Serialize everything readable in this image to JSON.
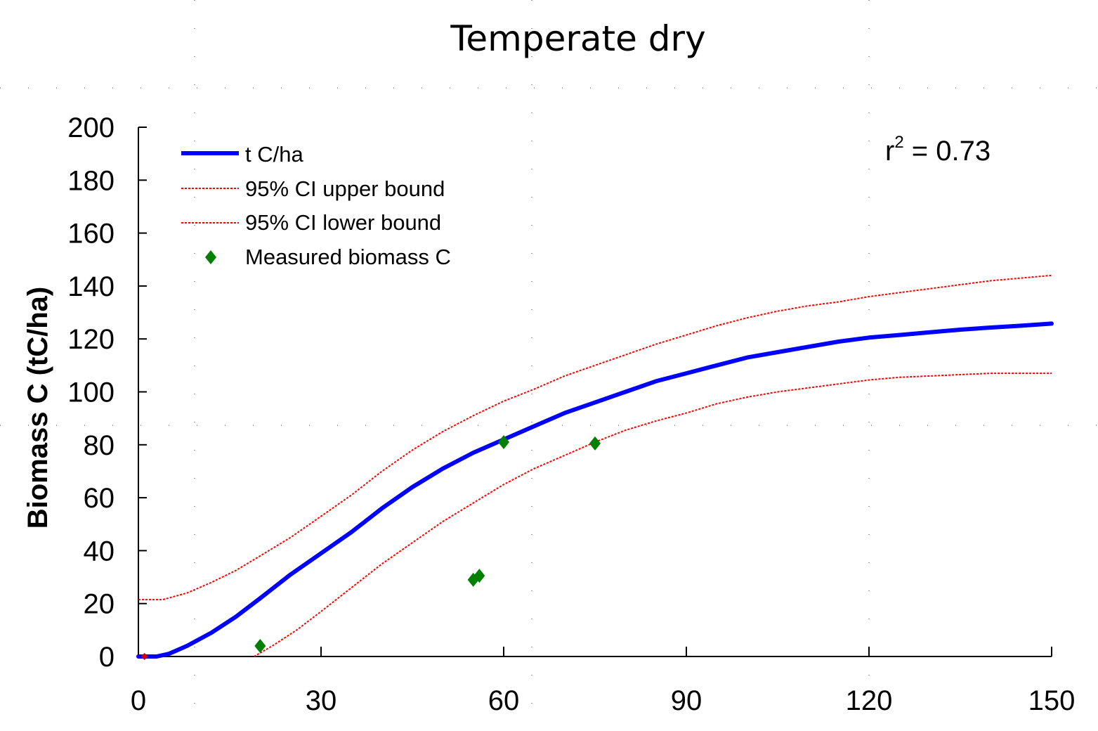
{
  "chart_data": {
    "type": "line",
    "title": "Temperate dry",
    "xlabel": "",
    "ylabel": "Biomass C (tC/ha)",
    "xlim": [
      0,
      150
    ],
    "ylim": [
      0,
      200
    ],
    "x_ticks": [
      0,
      30,
      60,
      90,
      120,
      150
    ],
    "y_ticks": [
      0,
      20,
      40,
      60,
      80,
      100,
      120,
      140,
      160,
      180,
      200
    ],
    "grid": false,
    "legend_position": "top-left",
    "annotation": {
      "base": "r",
      "sup": "2",
      "rest": " = 0.73"
    },
    "colors": {
      "main": "#0000ff",
      "ci": "#ff0000",
      "measured": "#008000",
      "axis": "#000000"
    },
    "series": [
      {
        "name": "t C/ha",
        "style": "solid",
        "x": [
          0,
          3,
          5,
          8,
          12,
          16,
          20,
          25,
          30,
          35,
          40,
          45,
          50,
          55,
          60,
          65,
          70,
          75,
          80,
          85,
          90,
          95,
          100,
          105,
          110,
          115,
          120,
          125,
          130,
          135,
          140,
          145,
          150
        ],
        "y": [
          0,
          0,
          1,
          4,
          9,
          15,
          22,
          31,
          39,
          47,
          56,
          64,
          71,
          77,
          82,
          87,
          92,
          96,
          100,
          104,
          107,
          110,
          113,
          115,
          117,
          119,
          120.5,
          121.5,
          122.5,
          123.5,
          124.3,
          125,
          125.8
        ]
      },
      {
        "name": "95% CI upper bound",
        "style": "dotted",
        "x": [
          0,
          4,
          8,
          12,
          16,
          20,
          25,
          30,
          35,
          40,
          45,
          50,
          55,
          60,
          65,
          70,
          75,
          80,
          85,
          90,
          95,
          100,
          105,
          110,
          115,
          120,
          125,
          130,
          135,
          140,
          145,
          150
        ],
        "y": [
          21.5,
          21.5,
          24,
          28,
          32.5,
          38,
          45,
          53,
          61,
          70,
          78,
          85,
          91,
          96.5,
          101,
          106,
          110,
          114,
          118,
          121.5,
          125,
          128,
          130.5,
          132.5,
          134,
          136,
          137.5,
          139,
          140.5,
          142,
          143,
          144
        ]
      },
      {
        "name": "95% CI lower bound",
        "style": "dotted",
        "x": [
          19,
          22,
          26,
          30,
          35,
          40,
          45,
          50,
          55,
          60,
          65,
          70,
          75,
          80,
          85,
          90,
          95,
          100,
          105,
          110,
          115,
          120,
          125,
          130,
          135,
          140,
          145,
          150
        ],
        "y": [
          0,
          4,
          10,
          17,
          26,
          35,
          43,
          51,
          58,
          65,
          71,
          76,
          81,
          85.5,
          89,
          92,
          95.5,
          98,
          100,
          101.5,
          103,
          104.5,
          105.5,
          106,
          106.5,
          107,
          107,
          107
        ]
      },
      {
        "name": "Measured biomass C",
        "style": "marker",
        "x": [
          20,
          55,
          56,
          60,
          75
        ],
        "y": [
          4,
          29,
          30.5,
          81,
          80.5
        ]
      }
    ]
  }
}
